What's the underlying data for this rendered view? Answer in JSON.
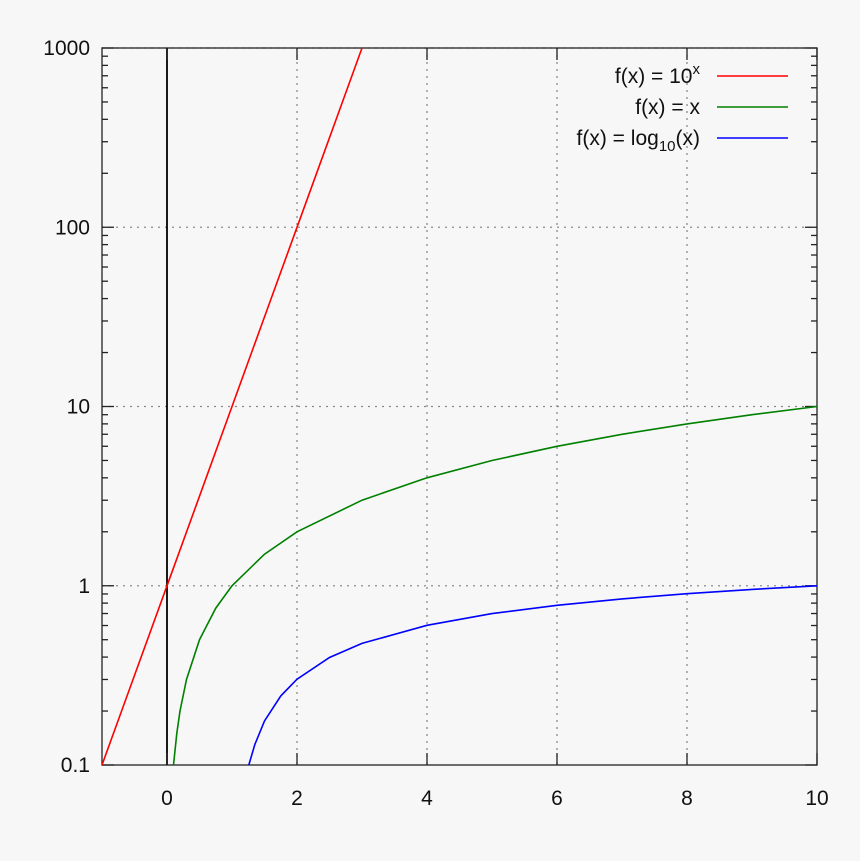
{
  "chart_data": {
    "type": "line",
    "xlim": [
      -1,
      10
    ],
    "ylim": [
      0.1,
      1000
    ],
    "y_scale": "log",
    "grid": true,
    "legend_position": "top-right",
    "x_ticks": [
      0,
      2,
      4,
      6,
      8,
      10
    ],
    "x_tick_labels": [
      "0",
      "2",
      "4",
      "6",
      "8",
      "10"
    ],
    "y_ticks": [
      0.1,
      1,
      10,
      100,
      1000
    ],
    "y_tick_labels": [
      "0.1",
      "1",
      "10",
      "100",
      "1000"
    ],
    "series": [
      {
        "name": "f(x) = 10^x",
        "legend": {
          "base": "f(x) = 10",
          "sup": "x",
          "sub": "",
          "tail": ""
        },
        "color": "#ff0000",
        "x": [
          -1,
          -0.5,
          0,
          0.5,
          1,
          1.5,
          2,
          2.5,
          3
        ],
        "y": [
          0.1,
          0.316,
          1,
          3.16,
          10,
          31.6,
          100,
          316,
          1000
        ]
      },
      {
        "name": "f(x) = x",
        "legend": {
          "base": "f(x) = x",
          "sup": "",
          "sub": "",
          "tail": ""
        },
        "color": "#008000",
        "x": [
          0.1,
          0.15,
          0.2,
          0.3,
          0.5,
          0.75,
          1,
          1.5,
          2,
          3,
          4,
          5,
          6,
          7,
          8,
          9,
          10
        ],
        "y": [
          0.1,
          0.15,
          0.2,
          0.3,
          0.5,
          0.75,
          1,
          1.5,
          2,
          3,
          4,
          5,
          6,
          7,
          8,
          9,
          10
        ]
      },
      {
        "name": "f(x) = log10(x)",
        "legend": {
          "base": "f(x) = log",
          "sup": "",
          "sub": "10",
          "tail": "(x)"
        },
        "color": "#0000ff",
        "x": [
          1.259,
          1.35,
          1.5,
          1.75,
          2,
          2.5,
          3,
          4,
          5,
          6,
          7,
          8,
          9,
          10
        ],
        "y": [
          0.1,
          0.13,
          0.176,
          0.243,
          0.301,
          0.398,
          0.477,
          0.602,
          0.699,
          0.778,
          0.845,
          0.903,
          0.954,
          1
        ]
      }
    ]
  }
}
